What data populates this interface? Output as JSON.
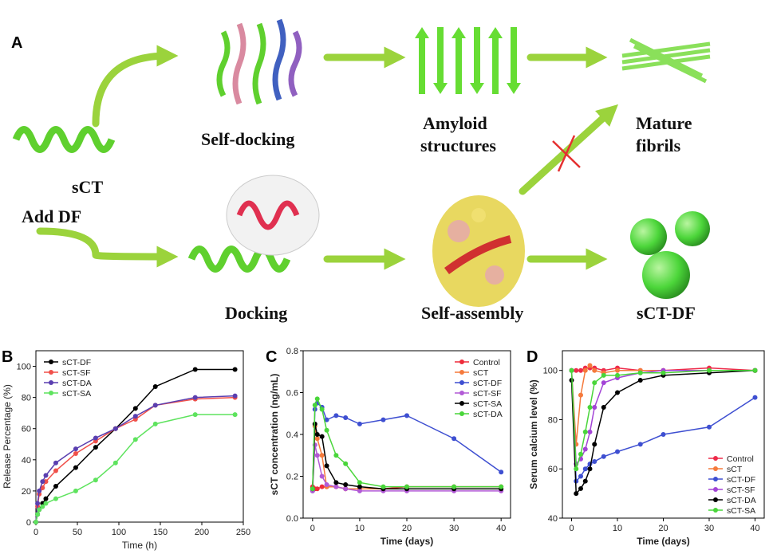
{
  "diagram": {
    "label": "A",
    "nodes": [
      "sCT",
      "Add DF",
      "Self-docking",
      "Amyloid",
      "structures",
      "Mature",
      "fibrils",
      "Docking",
      "Self-assembly",
      "sCT-DF"
    ]
  },
  "chart_data": [
    {
      "type": "line",
      "label": "B",
      "x_label": "Time (h)",
      "y_label": "Release Percentage (%)",
      "xlim": [
        0,
        250
      ],
      "ylim": [
        0,
        110
      ],
      "xticks": [
        0,
        50,
        100,
        150,
        200,
        250
      ],
      "yticks": [
        0,
        20,
        40,
        60,
        80,
        100
      ],
      "legend": "upper left",
      "x": [
        0,
        2,
        4,
        8,
        12,
        24,
        48,
        72,
        96,
        120,
        144,
        192,
        240
      ],
      "series": [
        {
          "name": "sCT-DF",
          "color": "#000000",
          "values": [
            0,
            5,
            8,
            12,
            15,
            23,
            35,
            48,
            60,
            73,
            87,
            98,
            98
          ]
        },
        {
          "name": "sCT-SF",
          "color": "#f0504a",
          "values": [
            0,
            10,
            18,
            22,
            26,
            33,
            44,
            52,
            60,
            66,
            75,
            79,
            80
          ]
        },
        {
          "name": "sCT-DA",
          "color": "#5a3fb0",
          "values": [
            0,
            12,
            20,
            26,
            30,
            38,
            47,
            54,
            60,
            68,
            75,
            80,
            81
          ]
        },
        {
          "name": "sCT-SA",
          "color": "#5ee35e",
          "values": [
            0,
            5,
            8,
            10,
            12,
            15,
            20,
            27,
            38,
            53,
            63,
            69,
            69
          ]
        }
      ]
    },
    {
      "type": "line",
      "label": "C",
      "x_label": "Time (days)",
      "y_label": "sCT concentration (ng/mL)",
      "xlim": [
        -2,
        42
      ],
      "ylim": [
        0,
        0.8
      ],
      "xticks": [
        0,
        10,
        20,
        30,
        40
      ],
      "yticks": [
        {
          "value": 0,
          "label": "0.0"
        },
        0.2,
        0.4,
        0.6,
        0.8
      ],
      "legend": "upper right",
      "x": [
        0,
        0.5,
        1,
        2,
        3,
        5,
        7,
        10,
        15,
        20,
        30,
        40
      ],
      "series": [
        {
          "name": "Control",
          "color": "#ee2b3a",
          "values": [
            0.15,
            0.14,
            0.14,
            0.15,
            0.15,
            0.15,
            0.14,
            0.14,
            0.14,
            0.15,
            0.15,
            0.15
          ]
        },
        {
          "name": "sCT",
          "color": "#f57a3c",
          "values": [
            0.14,
            0.44,
            0.38,
            0.3,
            0.15,
            0.15,
            0.14,
            0.14,
            0.14,
            0.14,
            0.14,
            0.14
          ]
        },
        {
          "name": "sCT-DF",
          "color": "#3e4fd1",
          "values": [
            0.13,
            0.52,
            0.55,
            0.53,
            0.47,
            0.49,
            0.48,
            0.45,
            0.47,
            0.49,
            0.38,
            0.22
          ]
        },
        {
          "name": "sCT-SF",
          "color": "#b25ad6",
          "values": [
            0.13,
            0.35,
            0.3,
            0.2,
            0.16,
            0.15,
            0.14,
            0.13,
            0.13,
            0.13,
            0.13,
            0.13
          ]
        },
        {
          "name": "sCT-SA",
          "color": "#000000",
          "values": [
            0.14,
            0.45,
            0.4,
            0.39,
            0.25,
            0.17,
            0.16,
            0.15,
            0.14,
            0.14,
            0.14,
            0.14
          ]
        },
        {
          "name": "sCT-DA",
          "color": "#49d63a",
          "values": [
            0.14,
            0.54,
            0.57,
            0.52,
            0.42,
            0.3,
            0.26,
            0.17,
            0.15,
            0.15,
            0.15,
            0.15
          ]
        }
      ]
    },
    {
      "type": "line",
      "label": "D",
      "x_label": "Time (days)",
      "y_label": "Serum calcium level (%)",
      "xlim": [
        -2,
        42
      ],
      "ylim": [
        40,
        108
      ],
      "xticks": [
        0,
        10,
        20,
        30,
        40
      ],
      "yticks": [
        40,
        60,
        80,
        100
      ],
      "legend": "lower right",
      "x": [
        0,
        1,
        2,
        3,
        4,
        5,
        7,
        10,
        15,
        20,
        30,
        40
      ],
      "series": [
        {
          "name": "Control",
          "color": "#ee2b4a",
          "values": [
            100,
            100,
            100,
            101,
            101,
            101,
            100,
            101,
            100,
            100,
            101,
            100
          ]
        },
        {
          "name": "sCT",
          "color": "#f57a3c",
          "values": [
            100,
            70,
            90,
            100,
            102,
            100,
            99,
            100,
            100,
            100,
            100,
            100
          ]
        },
        {
          "name": "sCT-DF",
          "color": "#3e4fd1",
          "values": [
            100,
            55,
            57,
            60,
            62,
            63,
            65,
            67,
            70,
            74,
            77,
            89
          ]
        },
        {
          "name": "sCT-SF",
          "color": "#a344d6",
          "values": [
            100,
            62,
            64,
            68,
            75,
            85,
            95,
            97,
            99,
            100,
            100,
            100
          ]
        },
        {
          "name": "sCT-DA",
          "color": "#000000",
          "values": [
            96,
            50,
            52,
            55,
            60,
            70,
            85,
            91,
            96,
            98,
            99,
            100
          ]
        },
        {
          "name": "sCT-SA",
          "color": "#49d63a",
          "values": [
            100,
            60,
            66,
            75,
            85,
            95,
            98,
            98,
            99,
            99,
            100,
            100
          ]
        }
      ]
    }
  ]
}
